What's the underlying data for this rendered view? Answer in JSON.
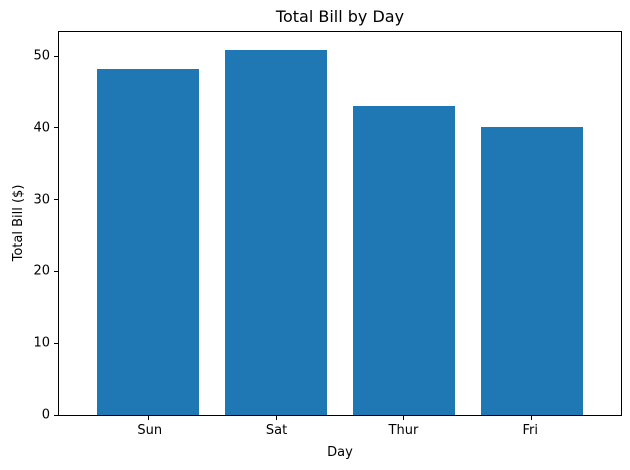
{
  "figure": {
    "background": "#ffffff",
    "spine_color": "#000000",
    "text_color": "#000000"
  },
  "chart_data": {
    "type": "bar",
    "title": "Total Bill by Day",
    "xlabel": "Day",
    "ylabel": "Total Bill ($)",
    "categories": [
      "Sun",
      "Sat",
      "Thur",
      "Fri"
    ],
    "values": [
      48.17,
      50.81,
      43.11,
      40.17
    ],
    "ylim": [
      0,
      53.35
    ],
    "yticks": [
      0,
      10,
      20,
      30,
      40,
      50
    ],
    "bar_color": "#1f77b4",
    "grid": false,
    "legend_position": "none"
  }
}
